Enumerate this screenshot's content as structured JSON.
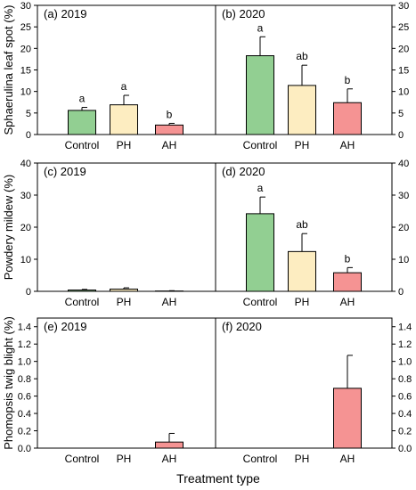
{
  "colors": {
    "Control": "#92cf92",
    "PH": "#fdedc1",
    "AH": "#f59393"
  },
  "xlabel": "Treatment type",
  "chart_data": [
    {
      "type": "bar",
      "panel_label": "(a) 2019",
      "ylabel": "Sphaerulina leaf spot (%)",
      "ylim": [
        0,
        30
      ],
      "yticks": [
        0,
        5,
        10,
        15,
        20,
        25,
        30
      ],
      "categories": [
        "Control",
        "PH",
        "AH"
      ],
      "values": [
        5.6,
        6.9,
        2.2
      ],
      "errors": [
        0.7,
        2.2,
        0.4
      ],
      "letters": [
        "a",
        "a",
        "b"
      ]
    },
    {
      "type": "bar",
      "panel_label": "(b) 2020",
      "ylim": [
        0,
        30
      ],
      "yticks": [
        0,
        5,
        10,
        15,
        20,
        25,
        30
      ],
      "categories": [
        "Control",
        "PH",
        "AH"
      ],
      "values": [
        18.3,
        11.4,
        7.4
      ],
      "errors": [
        4.4,
        4.7,
        3.2
      ],
      "letters": [
        "a",
        "ab",
        "b"
      ]
    },
    {
      "type": "bar",
      "panel_label": "(c) 2019",
      "ylabel": "Powdery mildew (%)",
      "ylim": [
        0,
        40
      ],
      "yticks": [
        0,
        10,
        20,
        30,
        40
      ],
      "categories": [
        "Control",
        "PH",
        "AH"
      ],
      "values": [
        0.4,
        0.7,
        0.1
      ],
      "errors": [
        0.2,
        0.4,
        0.1
      ],
      "letters": [
        "",
        "",
        ""
      ]
    },
    {
      "type": "bar",
      "panel_label": "(d) 2020",
      "ylim": [
        0,
        40
      ],
      "yticks": [
        0,
        10,
        20,
        30,
        40
      ],
      "categories": [
        "Control",
        "PH",
        "AH"
      ],
      "values": [
        24.2,
        12.4,
        5.8
      ],
      "errors": [
        5.2,
        5.6,
        1.6
      ],
      "letters": [
        "a",
        "ab",
        "b"
      ]
    },
    {
      "type": "bar",
      "panel_label": "(e) 2019",
      "ylabel": "Phomopsis twig blight (%)",
      "ylim": [
        0,
        1.5
      ],
      "yticks": [
        0.0,
        0.2,
        0.4,
        0.6,
        0.8,
        1.0,
        1.2,
        1.4
      ],
      "categories": [
        "Control",
        "PH",
        "AH"
      ],
      "values": [
        0,
        0,
        0.07
      ],
      "errors": [
        0,
        0,
        0.1
      ],
      "letters": [
        "",
        "",
        ""
      ]
    },
    {
      "type": "bar",
      "panel_label": "(f) 2020",
      "ylim": [
        0,
        1.5
      ],
      "yticks": [
        0.0,
        0.2,
        0.4,
        0.6,
        0.8,
        1.0,
        1.2,
        1.4
      ],
      "categories": [
        "Control",
        "PH",
        "AH"
      ],
      "values": [
        0,
        0,
        0.69
      ],
      "errors": [
        0,
        0,
        0.38
      ],
      "letters": [
        "",
        "",
        ""
      ]
    }
  ]
}
